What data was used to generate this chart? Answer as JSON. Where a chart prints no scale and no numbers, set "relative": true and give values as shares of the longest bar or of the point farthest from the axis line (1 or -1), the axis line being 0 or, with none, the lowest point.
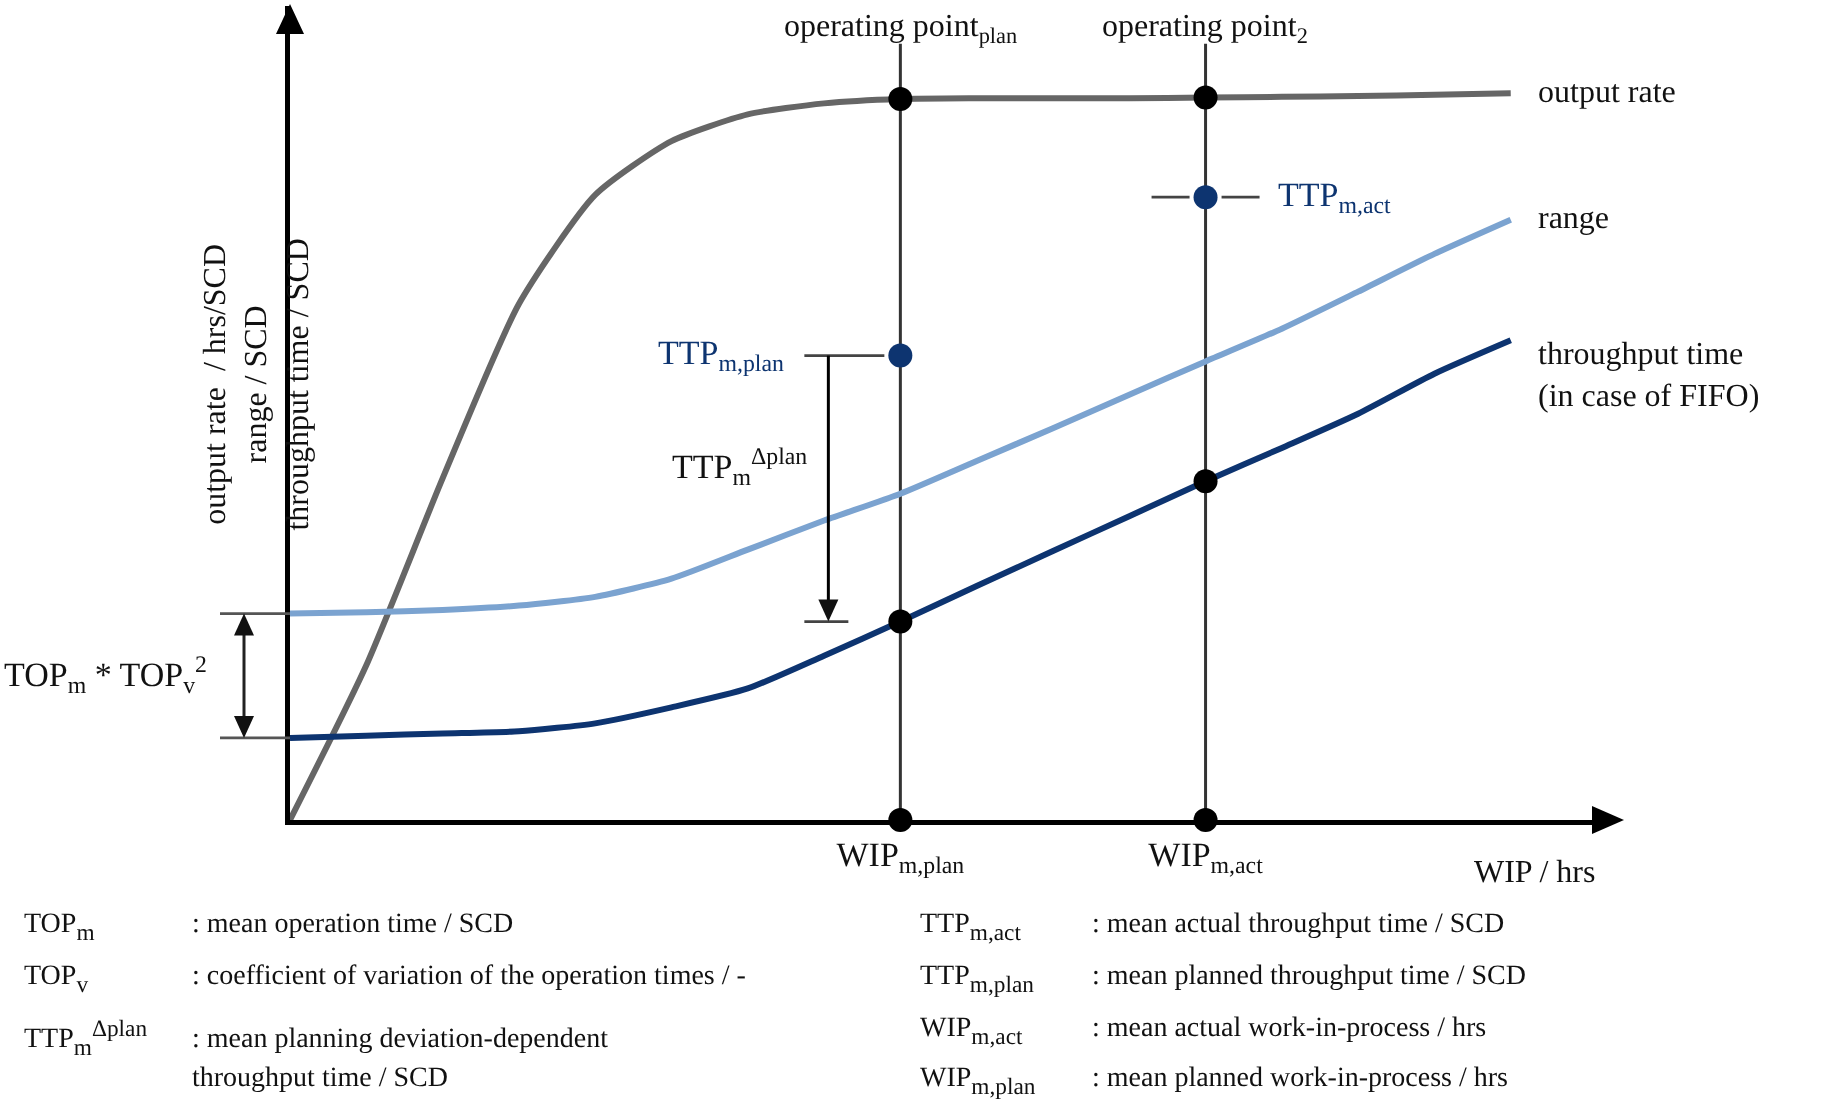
{
  "chart_data": {
    "type": "line",
    "relative": true,
    "xlabel": "WIP / hrs",
    "ylabel": "output rate  / hrs/SCD\nrange / SCD\nthroughput time / SCD",
    "categories": [
      null,
      null,
      null,
      null,
      null,
      null,
      null,
      null,
      "WIP$_{m,plan}$",
      null,
      null,
      null,
      "WIP$_{m,act}$",
      null,
      null,
      null,
      null
    ],
    "tick_labels": "x",
    "legend": false,
    "line_style": "solid",
    "series": [
      {
        "name": "output rate",
        "color": "#666666",
        "values": [
          0,
          0.213,
          0.47,
          0.71,
          0.86,
          0.934,
          0.971,
          0.986,
          0.992,
          0.993,
          0.993,
          0.993,
          0.994,
          0.995,
          0.996,
          0.998,
          1
        ]
      },
      {
        "name": "range",
        "color": "#7ba3d0",
        "values": [
          0.284,
          0.286,
          0.289,
          0.295,
          0.307,
          0.332,
          0.372,
          0.412,
          0.449,
          0.494,
          0.539,
          0.585,
          0.631,
          0.676,
          0.727,
          0.779,
          0.826
        ]
      },
      {
        "name": "throughput time\n(in case of FIFO)",
        "color": "#0d3470",
        "values": [
          0.113,
          0.116,
          0.119,
          0.122,
          0.133,
          0.155,
          0.181,
          0.226,
          0.273,
          0.322,
          0.37,
          0.418,
          0.466,
          0.512,
          0.559,
          0.614,
          0.66
        ]
      },
      {
        "type": "scatter",
        "marker": "circle",
        "color": "#000000",
        "values": [
          null,
          null,
          null,
          null,
          null,
          null,
          null,
          null,
          0.992,
          null,
          null,
          null,
          0.994,
          null,
          null,
          null,
          null
        ]
      },
      {
        "type": "scatter",
        "marker": "circle",
        "color": "#000000",
        "values": [
          null,
          null,
          null,
          null,
          null,
          null,
          null,
          null,
          0.273,
          null,
          null,
          null,
          0.466,
          null,
          null,
          null,
          null
        ]
      },
      {
        "type": "scatter",
        "marker": "circle",
        "color": "#000000",
        "values": [
          null,
          null,
          null,
          null,
          null,
          null,
          null,
          null,
          0,
          null,
          null,
          null,
          0,
          null,
          null,
          null,
          null
        ]
      },
      {
        "type": "scatter",
        "marker": "circle",
        "name": "TTP$_{m,plan}$",
        "color": "#0d3470",
        "values": [
          null,
          null,
          null,
          null,
          null,
          null,
          null,
          null,
          0.639,
          null,
          null,
          null,
          null,
          null,
          null,
          null,
          null
        ]
      },
      {
        "type": "scatter",
        "marker": "circle",
        "name": "TTP$_{m,act}$",
        "color": "#0d3470",
        "values": [
          null,
          null,
          null,
          null,
          null,
          null,
          null,
          null,
          null,
          null,
          null,
          null,
          0.857,
          null,
          null,
          null,
          null
        ]
      }
    ],
    "ref_lines": [
      {
        "axis": "x",
        "value": "WIP$_{m,plan}$",
        "label": "operating point$_{plan}$",
        "color": "#333333"
      },
      {
        "axis": "x",
        "value": "WIP$_{m,act}$",
        "label": "operating point$_{2}$",
        "color": "#333333"
      }
    ],
    "annotations": [
      "TOP$_{m}$ * TOP$_{v}$$^{2}$",
      "TTP$_{m}$$^{Δplan}$",
      "TOP$_{m}$ : mean operation time / SCD",
      "TOP$_{v}$ : coefficient of variation of the operation times / -",
      "TTP$_{m}$$^{Δplan}$ : mean planning deviation-dependent\nthroughput time / SCD",
      "TTP$_{m,act}$ : mean actual throughput time / SCD",
      "TTP$_{m,plan}$ : mean planned throughput time / SCD",
      "WIP$_{m,act}$ : mean actual work-in-process / hrs",
      "WIP$_{m,plan}$ : mean planned work-in-process / hrs"
    ]
  }
}
